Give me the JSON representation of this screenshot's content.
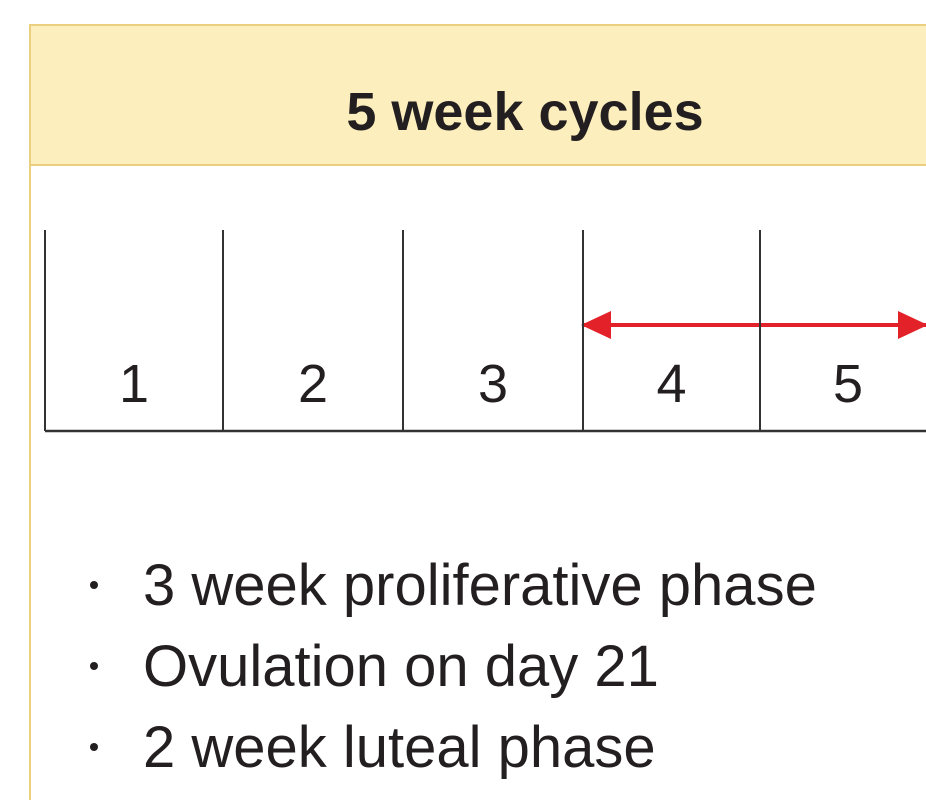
{
  "title": "5 week cycles",
  "weeks": [
    1,
    2,
    3,
    4,
    5
  ],
  "bullets": [
    "3 week proliferative phase",
    "Ovulation on day 21",
    "2 week luteal phase"
  ]
}
